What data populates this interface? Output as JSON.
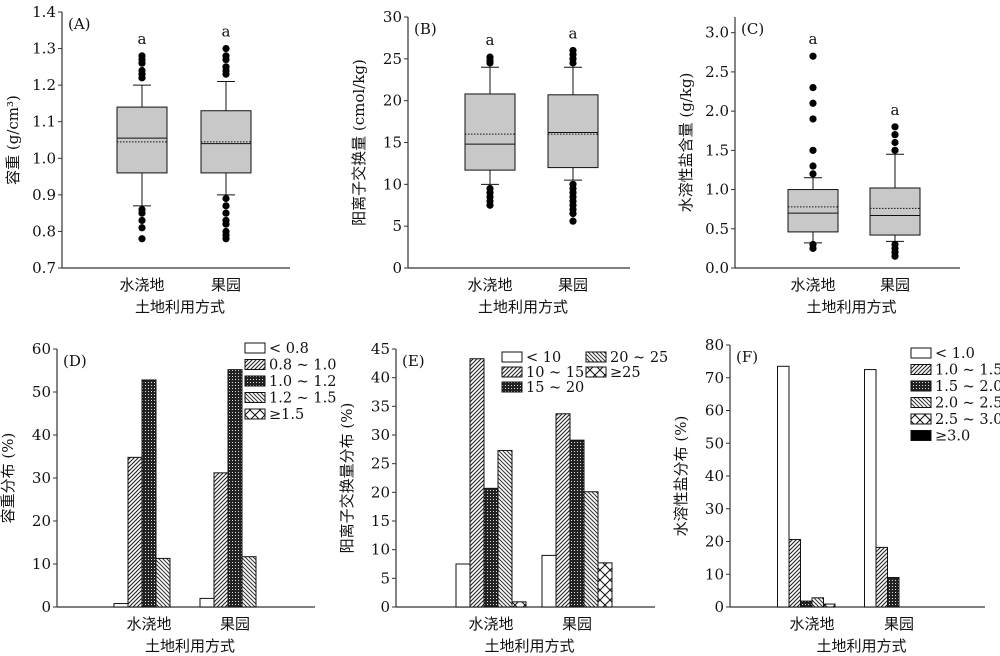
{
  "chart_data": [
    {
      "id": "A",
      "type": "box",
      "panel_label": "(A)",
      "ylabel": "容重 (g/cm³)",
      "xlabel": "土地利用方式",
      "ylim": [
        0.7,
        1.4
      ],
      "yticks": [
        "0.7",
        "0.8",
        "0.9",
        "1.0",
        "1.1",
        "1.2",
        "1.3",
        "1.4"
      ],
      "categories": [
        "水浇地",
        "果园"
      ],
      "sig_letters": [
        "a",
        "a"
      ],
      "boxes": [
        {
          "q1": 0.96,
          "median": 1.055,
          "mean": 1.045,
          "q3": 1.14,
          "whisker_low": 0.87,
          "whisker_high": 1.2,
          "outliers": [
            0.78,
            0.81,
            0.83,
            0.85,
            0.86,
            1.22,
            1.23,
            1.24,
            1.26,
            1.27,
            1.28
          ]
        },
        {
          "q1": 0.96,
          "median": 1.04,
          "mean": 1.045,
          "q3": 1.13,
          "whisker_low": 0.9,
          "whisker_high": 1.21,
          "outliers": [
            0.78,
            0.79,
            0.8,
            0.82,
            0.83,
            0.85,
            0.87,
            0.89,
            1.23,
            1.24,
            1.25,
            1.27,
            1.28,
            1.3
          ]
        }
      ]
    },
    {
      "id": "B",
      "type": "box",
      "panel_label": "(B)",
      "ylabel": "阳离子交换量 (cmol/kg)",
      "xlabel": "土地利用方式",
      "ylim": [
        0,
        30
      ],
      "yticks": [
        "0",
        "5",
        "10",
        "15",
        "20",
        "25",
        "30"
      ],
      "categories": [
        "水浇地",
        "果园"
      ],
      "sig_letters": [
        "a",
        "a"
      ],
      "boxes": [
        {
          "q1": 11.7,
          "median": 14.8,
          "mean": 16.0,
          "q3": 20.8,
          "whisker_low": 10,
          "whisker_high": 24,
          "outliers": [
            7.5,
            8,
            8.5,
            9,
            9.5,
            24.5,
            24.8,
            25.2
          ]
        },
        {
          "q1": 12,
          "median": 16.2,
          "mean": 16.0,
          "q3": 20.7,
          "whisker_low": 10.5,
          "whisker_high": 24,
          "outliers": [
            5.6,
            6.5,
            7,
            7.5,
            8,
            8.5,
            9,
            9.5,
            10,
            24.5,
            25,
            25.5,
            26
          ]
        }
      ]
    },
    {
      "id": "C",
      "type": "box",
      "panel_label": "(C)",
      "ylabel": "水溶性盐含量 (g/kg)",
      "xlabel": "土地利用方式",
      "ylim": [
        0,
        3.2
      ],
      "yticks": [
        "0.0",
        "0.5",
        "1.0",
        "1.5",
        "2.0",
        "2.5",
        "3.0"
      ],
      "categories": [
        "水浇地",
        "果园"
      ],
      "sig_letters": [
        "a",
        "a"
      ],
      "boxes": [
        {
          "q1": 0.46,
          "median": 0.7,
          "mean": 0.78,
          "q3": 1.0,
          "whisker_low": 0.32,
          "whisker_high": 1.15,
          "outliers": [
            0.25,
            0.3,
            1.2,
            1.3,
            1.5,
            1.9,
            2.1,
            2.3,
            2.7
          ]
        },
        {
          "q1": 0.42,
          "median": 0.67,
          "mean": 0.76,
          "q3": 1.02,
          "whisker_low": 0.34,
          "whisker_high": 1.45,
          "outliers": [
            0.15,
            0.2,
            0.25,
            0.3,
            1.5,
            1.6,
            1.7,
            1.8
          ]
        }
      ]
    },
    {
      "id": "D",
      "type": "bar",
      "panel_label": "(D)",
      "ylabel": "容重分布 (%)",
      "xlabel": "土地利用方式",
      "ylim": [
        0,
        60
      ],
      "yticks": [
        "0",
        "10",
        "20",
        "30",
        "40",
        "50",
        "60"
      ],
      "categories": [
        "水浇地",
        "果园"
      ],
      "series": [
        {
          "name": "< 0.8",
          "pattern": "white",
          "values": [
            0.8,
            2.0
          ]
        },
        {
          "name": "0.8 ~ 1.0",
          "pattern": "fwd",
          "values": [
            34.8,
            31.2
          ]
        },
        {
          "name": "1.0 ~ 1.2",
          "pattern": "dots",
          "values": [
            52.8,
            55.2
          ]
        },
        {
          "name": "1.2 ~ 1.5",
          "pattern": "back",
          "values": [
            11.3,
            11.7
          ]
        },
        {
          "name": "≥1.5",
          "pattern": "cross",
          "values": [
            0,
            0
          ]
        }
      ]
    },
    {
      "id": "E",
      "type": "bar",
      "panel_label": "(E)",
      "ylabel": "阳离子交换量分布 (%)",
      "xlabel": "土地利用方式",
      "ylim": [
        0,
        45
      ],
      "yticks": [
        "0",
        "5",
        "10",
        "15",
        "20",
        "25",
        "30",
        "35",
        "40",
        "45"
      ],
      "categories": [
        "水浇地",
        "果园"
      ],
      "series": [
        {
          "name": "< 10",
          "pattern": "white",
          "values": [
            7.5,
            9.0
          ]
        },
        {
          "name": "10 ~ 15",
          "pattern": "fwd",
          "values": [
            43.3,
            33.7
          ]
        },
        {
          "name": "15 ~ 20",
          "pattern": "dots",
          "values": [
            20.7,
            29.1
          ]
        },
        {
          "name": "20 ~ 25",
          "pattern": "back",
          "values": [
            27.3,
            20.1
          ]
        },
        {
          "name": "≥25",
          "pattern": "cross",
          "values": [
            0.9,
            7.7
          ]
        }
      ]
    },
    {
      "id": "F",
      "type": "bar",
      "panel_label": "(F)",
      "ylabel": "水溶性盐分布 (%)",
      "xlabel": "土地利用方式",
      "ylim": [
        0,
        80
      ],
      "yticks": [
        "0",
        "10",
        "20",
        "30",
        "40",
        "50",
        "60",
        "70",
        "80"
      ],
      "categories": [
        "水浇地",
        "果园"
      ],
      "series": [
        {
          "name": "< 1.0",
          "pattern": "white",
          "values": [
            73.5,
            72.5
          ]
        },
        {
          "name": "1.0 ~ 1.5",
          "pattern": "fwd",
          "values": [
            20.6,
            18.2
          ]
        },
        {
          "name": "1.5 ~ 2.0",
          "pattern": "dots",
          "values": [
            1.8,
            9.0
          ]
        },
        {
          "name": "2.0 ~ 2.5",
          "pattern": "back",
          "values": [
            2.8,
            0
          ]
        },
        {
          "name": "2.5 ~ 3.0",
          "pattern": "cross",
          "values": [
            0.9,
            0
          ]
        },
        {
          "name": "≥3.0",
          "pattern": "black",
          "values": [
            0,
            0
          ]
        }
      ]
    }
  ],
  "colors": {
    "box_fill": "#c8c8c8",
    "line": "#111111"
  }
}
